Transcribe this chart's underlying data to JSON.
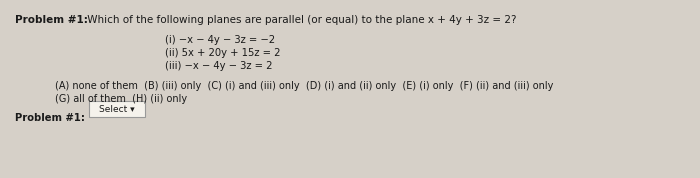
{
  "bg_color": "#d6d0c8",
  "text_color": "#1a1a1a",
  "title_bold": "Problem #1:",
  "title_rest": " Which of the following planes are parallel (or equal) to the plane x + 4y + 3z = 2?",
  "item1": "(i) −x − 4y − 3z = −2",
  "item2": "(ii) 5x + 20y + 15z = 2",
  "item3": "(iii) −x − 4y − 3z = 2",
  "ans1": "(A) none of them  (B) (iii) only  (C) (i) and (iii) only  (D) (i) and (ii) only  (E) (i) only  (F) (ii) and (iii) only",
  "ans2": "(G) all of them  (H) (ii) only",
  "footer_bold": "Problem #1:",
  "select_label": "Select ▾",
  "title_fontsize": 7.5,
  "item_fontsize": 7.2,
  "ans_fontsize": 7.0,
  "footer_fontsize": 7.2,
  "select_box_color": "#f5f2ec",
  "select_box_edge": "#999999"
}
